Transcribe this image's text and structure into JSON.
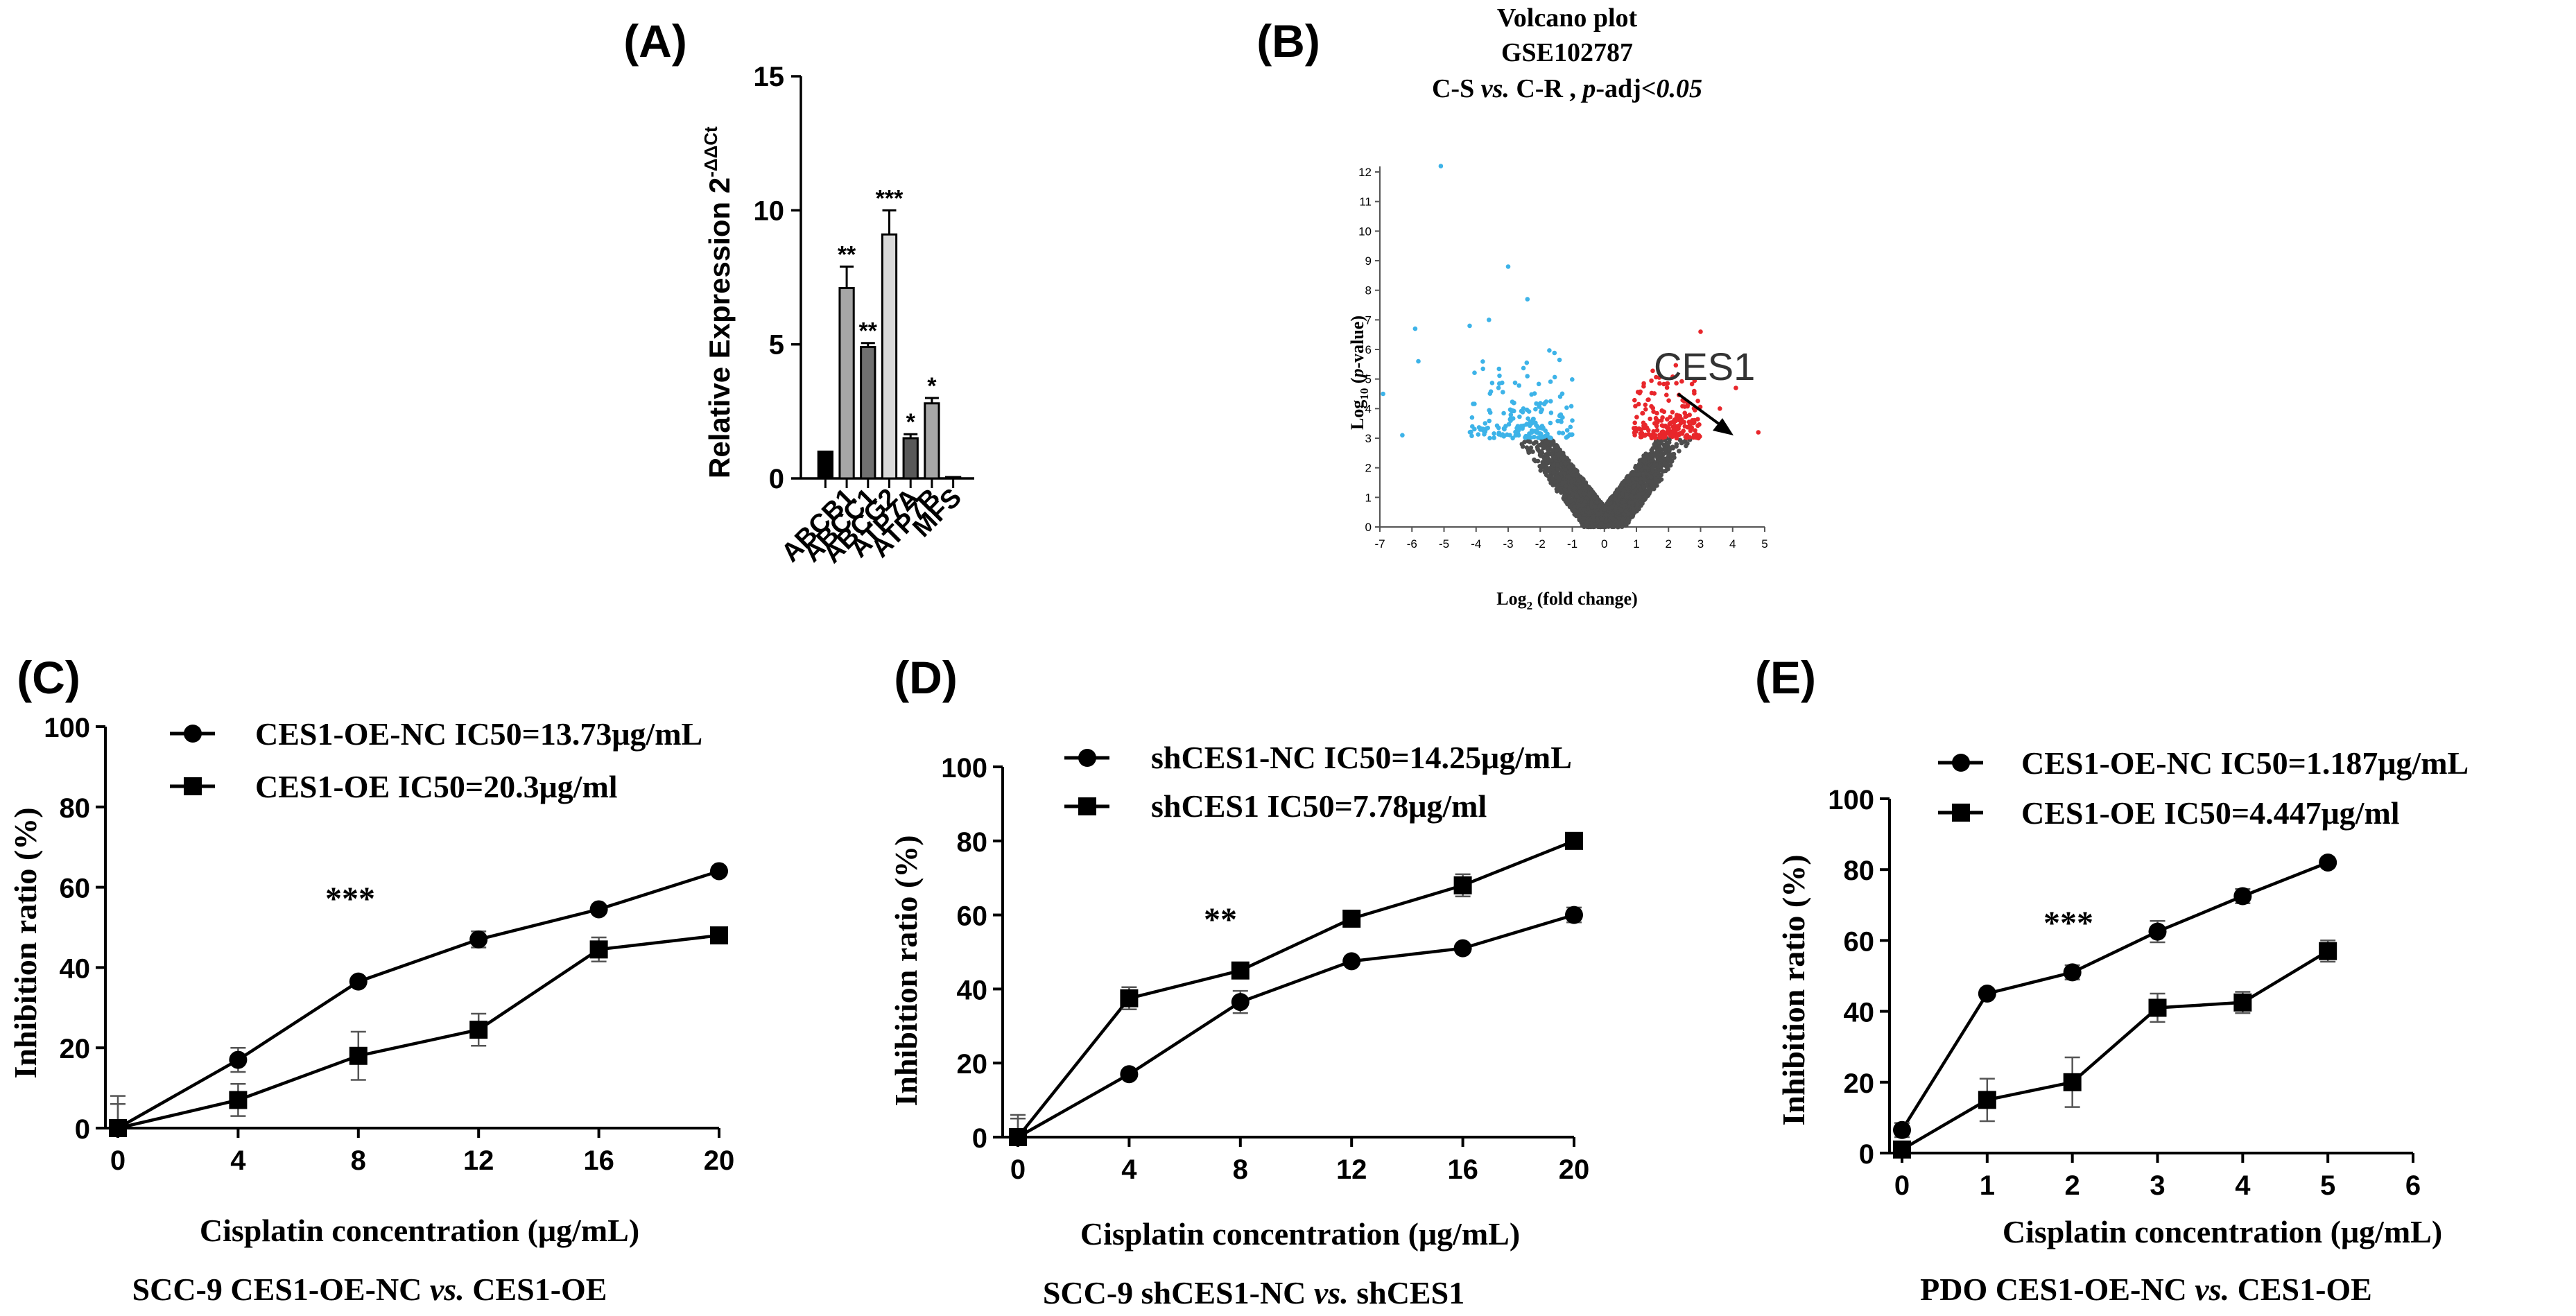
{
  "chart_data": [
    {
      "panel": "(A)",
      "type": "bar",
      "title": "",
      "xlabel": "",
      "ylabel": "Relative Expression 2",
      "ylabel_superscript": "-ΔΔCt",
      "ylim": [
        0,
        15
      ],
      "yticks": [
        "0",
        "5",
        "10",
        "15"
      ],
      "categories": [
        "ABCB1",
        "ABCC1",
        "ABCG2",
        "ATP7A",
        "ATP7B",
        "MFS"
      ],
      "bars": [
        {
          "value": 1.0,
          "error": 0.0,
          "sig": "",
          "color": "#000000"
        },
        {
          "value": 7.1,
          "error": 0.8,
          "sig": "**",
          "color": "#a6a6a6"
        },
        {
          "value": 4.9,
          "error": 0.15,
          "sig": "**",
          "color": "#707070"
        },
        {
          "value": 9.1,
          "error": 0.9,
          "sig": "***",
          "color": "#d9d9d9"
        },
        {
          "value": 1.5,
          "error": 0.15,
          "sig": "*",
          "color": "#595959"
        },
        {
          "value": 2.8,
          "error": 0.2,
          "sig": "*",
          "color": "#a6a6a6"
        },
        {
          "value": 0.05,
          "error": 0.0,
          "sig": "",
          "color": "#404040"
        }
      ],
      "bar_labels": [
        "",
        "ABCB1",
        "ABCC1",
        "ABCG2",
        "ATP7A",
        "ATP7B",
        "MFS"
      ]
    },
    {
      "panel": "(B)",
      "type": "scatter",
      "title_lines": [
        "Volcano plot",
        "GSE102787"
      ],
      "title_cmp_a": "C-S ",
      "title_cmp_vs": "vs.",
      "title_cmp_b": " C-R , ",
      "title_cmp_p": "p",
      "title_cmp_adj": "-adj",
      "title_cmp_thresh": "<0.05",
      "xlabel": "Log",
      "xlabel_sub": "2",
      "xlabel_rest": " (fold change)",
      "ylabel": "Log",
      "ylabel_sub": "10",
      "ylabel_rest_a": " (",
      "ylabel_p": "p",
      "ylabel_rest_b": "-value)",
      "xlim": [
        -7,
        5
      ],
      "ylim": [
        0,
        12
      ],
      "xticks": [
        "-7",
        "-6",
        "-5",
        "-4",
        "-3",
        "-2",
        "-1",
        "0",
        "1",
        "2",
        "3",
        "4",
        "5"
      ],
      "yticks": [
        "0",
        "1",
        "2",
        "3",
        "4",
        "5",
        "6",
        "7",
        "8",
        "9",
        "10",
        "11",
        "12"
      ],
      "threshold": 3,
      "annotation": "CES1",
      "colors": {
        "up": "#e8262b",
        "down": "#3db3e8",
        "ns": "#4d4d4d"
      },
      "highlight_points": [
        {
          "x": -5.1,
          "y": 12.2,
          "group": "down"
        },
        {
          "x": -6.9,
          "y": 4.5,
          "group": "down"
        },
        {
          "x": -6.3,
          "y": 3.1,
          "group": "down"
        },
        {
          "x": -5.9,
          "y": 6.7,
          "group": "down"
        },
        {
          "x": -5.8,
          "y": 5.6,
          "group": "down"
        },
        {
          "x": -3.0,
          "y": 8.8,
          "group": "down"
        },
        {
          "x": -2.4,
          "y": 7.7,
          "group": "down"
        },
        {
          "x": -3.6,
          "y": 7.0,
          "group": "down"
        },
        {
          "x": -4.2,
          "y": 6.8,
          "group": "down"
        },
        {
          "x": 3.0,
          "y": 6.6,
          "group": "up"
        },
        {
          "x": 4.1,
          "y": 4.7,
          "group": "up"
        },
        {
          "x": 4.8,
          "y": 3.2,
          "group": "up"
        },
        {
          "x": 3.6,
          "y": 4.0,
          "group": "up"
        }
      ]
    },
    {
      "panel": "(C)",
      "type": "line",
      "caption_a": "SCC-9 CES1-OE-NC ",
      "caption_vs": "vs.",
      "caption_b": " CES1-OE",
      "xlabel": "Cisplatin concentration (μg/mL)",
      "ylabel": "Inhibition ratio (%)",
      "xlim": [
        0,
        20
      ],
      "ylim": [
        0,
        100
      ],
      "xticks": [
        0,
        4,
        8,
        12,
        16,
        20
      ],
      "yticks": [
        0,
        20,
        40,
        60,
        80,
        100
      ],
      "significance": "***",
      "x": [
        0,
        4,
        8,
        12,
        16,
        20
      ],
      "series": [
        {
          "name": "CES1-OE-NC IC50=13.73μg/mL",
          "marker": "circle",
          "values": [
            0,
            17,
            36.5,
            47,
            54.5,
            64
          ],
          "errors": [
            8,
            3,
            1,
            2,
            1,
            1
          ]
        },
        {
          "name": "CES1-OE IC50=20.3μg/ml",
          "marker": "square",
          "values": [
            0,
            7,
            18,
            24.5,
            44.5,
            48
          ],
          "errors": [
            6,
            4,
            6,
            4,
            3,
            1
          ]
        }
      ]
    },
    {
      "panel": "(D)",
      "type": "line",
      "caption_a": "SCC-9 shCES1-NC ",
      "caption_vs": "vs.",
      "caption_b": " shCES1",
      "xlabel": "Cisplatin concentration (μg/mL)",
      "ylabel": "Inhibition ratio (%)",
      "xlim": [
        0,
        20
      ],
      "ylim": [
        0,
        100
      ],
      "xticks": [
        0,
        4,
        8,
        12,
        16,
        20
      ],
      "yticks": [
        0,
        20,
        40,
        60,
        80,
        100
      ],
      "significance": "**",
      "x": [
        0,
        4,
        8,
        12,
        16,
        20
      ],
      "series": [
        {
          "name": "shCES1-NC IC50=14.25μg/mL",
          "marker": "circle",
          "values": [
            0,
            17,
            36.5,
            47.5,
            51,
            60
          ],
          "errors": [
            6,
            1,
            3,
            1,
            1,
            2
          ]
        },
        {
          "name": "shCES1 IC50=7.78μg/ml",
          "marker": "square",
          "values": [
            0,
            37.5,
            45,
            59,
            68,
            80
          ],
          "errors": [
            5,
            3,
            1,
            2,
            3,
            1
          ]
        }
      ]
    },
    {
      "panel": "(E)",
      "type": "line",
      "caption_a": "PDO CES1-OE-NC ",
      "caption_vs": "vs.",
      "caption_b": " CES1-OE",
      "xlabel": "Cisplatin concentration (μg/mL)",
      "ylabel": "Inhibition ratio (%)",
      "xlim": [
        0,
        6
      ],
      "ylim": [
        0,
        100
      ],
      "xticks": [
        0,
        1,
        2,
        3,
        4,
        5,
        6
      ],
      "yticks": [
        0,
        20,
        40,
        60,
        80,
        100
      ],
      "significance": "***",
      "x": [
        0,
        1,
        2,
        3,
        4,
        5
      ],
      "series": [
        {
          "name": "CES1-OE-NC IC50=1.187μg/mL",
          "marker": "circle",
          "values": [
            6.5,
            45,
            51,
            62.5,
            72.5,
            82
          ],
          "errors": [
            2,
            1,
            2,
            3,
            2,
            1
          ]
        },
        {
          "name": "CES1-OE IC50=4.447μg/ml",
          "marker": "square",
          "values": [
            1,
            15,
            20,
            41,
            42.5,
            57
          ],
          "errors": [
            2,
            6,
            7,
            4,
            3,
            3
          ]
        }
      ]
    }
  ]
}
